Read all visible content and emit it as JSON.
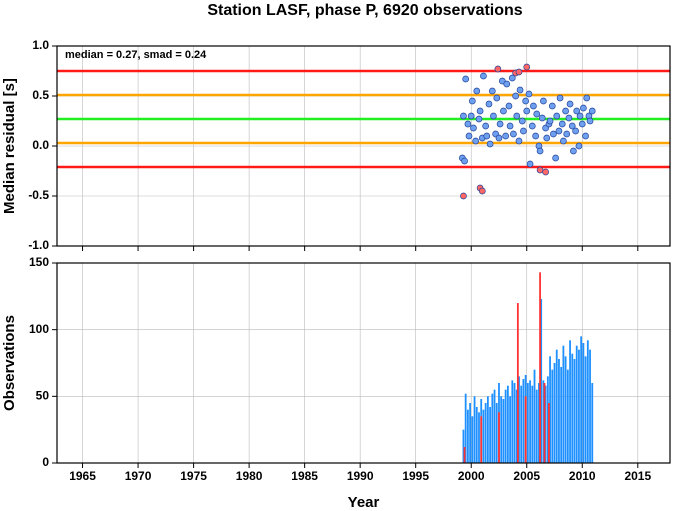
{
  "chart_data": [
    {
      "type": "scatter",
      "title": "Station LASF, phase P, 6920 observations",
      "ylabel": "Median residual [s]",
      "annotation": "median = 0.27, smad = 0.24",
      "xlim": [
        1962.7,
        2017.9
      ],
      "xticks": [
        1965,
        1970,
        1975,
        1980,
        1985,
        1990,
        1995,
        2000,
        2005,
        2010,
        2015
      ],
      "ylim": [
        -1.0,
        1.0
      ],
      "yticks": [
        {
          "value": -1.0,
          "label": "-1.0"
        },
        {
          "value": -0.5,
          "label": "-0.5"
        },
        {
          "value": 0.0,
          "label": "0.0"
        },
        {
          "value": 0.5,
          "label": "0.5"
        },
        {
          "value": 1.0,
          "label": "1.0"
        }
      ],
      "grid": true,
      "hlines": [
        {
          "value": 0.75,
          "color": "#ff1a1a"
        },
        {
          "value": 0.51,
          "color": "#ffa500"
        },
        {
          "value": 0.27,
          "color": "#22ee22"
        },
        {
          "value": 0.03,
          "color": "#ffa500"
        },
        {
          "value": -0.21,
          "color": "#ff1a1a"
        }
      ],
      "series": [
        {
          "color": "#6fa0f0",
          "x": [
            1999.2,
            1999.3,
            1999.4,
            1999.5,
            1999.7,
            1999.8,
            2000.0,
            2000.1,
            2000.2,
            2000.4,
            2000.5,
            2000.7,
            2000.8,
            2001.0,
            2001.1,
            2001.3,
            2001.4,
            2001.6,
            2001.7,
            2001.9,
            2002.0,
            2002.2,
            2002.3,
            2002.5,
            2002.6,
            2002.8,
            2002.9,
            2003.1,
            2003.2,
            2003.4,
            2003.5,
            2003.7,
            2003.8,
            2004.0,
            2004.1,
            2004.3,
            2004.4,
            2004.6,
            2004.7,
            2004.9,
            2005.0,
            2005.2,
            2005.3,
            2005.5,
            2005.6,
            2005.8,
            2005.9,
            2006.1,
            2006.2,
            2006.4,
            2006.5,
            2006.7,
            2006.8,
            2007.0,
            2007.1,
            2007.3,
            2007.4,
            2007.6,
            2007.7,
            2007.9,
            2008.0,
            2008.2,
            2008.3,
            2008.5,
            2008.6,
            2008.8,
            2008.9,
            2009.1,
            2009.2,
            2009.4,
            2009.5,
            2009.7,
            2009.8,
            2010.0,
            2010.1,
            2010.3,
            2010.4,
            2010.6,
            2010.7,
            2010.9
          ],
          "values": [
            -0.12,
            0.3,
            -0.15,
            0.67,
            0.22,
            0.1,
            0.3,
            0.45,
            0.18,
            0.05,
            0.55,
            0.27,
            0.35,
            0.08,
            0.7,
            0.2,
            0.1,
            0.42,
            0.02,
            0.55,
            0.3,
            0.12,
            0.48,
            0.08,
            0.22,
            0.65,
            0.35,
            0.1,
            0.62,
            0.4,
            0.2,
            0.68,
            0.12,
            0.5,
            0.3,
            0.05,
            0.56,
            0.25,
            0.15,
            0.45,
            0.35,
            0.52,
            -0.18,
            0.2,
            0.4,
            0.1,
            0.32,
            0.0,
            -0.05,
            0.28,
            0.45,
            0.18,
            0.08,
            0.22,
            0.25,
            0.4,
            0.12,
            -0.12,
            0.3,
            0.15,
            0.48,
            0.22,
            0.05,
            0.35,
            0.12,
            0.28,
            0.42,
            0.2,
            -0.05,
            0.15,
            0.35,
            0.0,
            0.3,
            0.22,
            0.38,
            0.1,
            0.48,
            0.3,
            0.25,
            0.35
          ]
        },
        {
          "color": "#ff6666",
          "x": [
            1999.3,
            2000.8,
            2001.0,
            2002.4,
            2004.0,
            2004.3,
            2005.0,
            2006.2,
            2006.7
          ],
          "values": [
            -0.5,
            -0.42,
            -0.45,
            0.77,
            0.73,
            0.74,
            0.79,
            -0.24,
            -0.26
          ]
        }
      ]
    },
    {
      "type": "bar",
      "xlabel": "Year",
      "ylabel": "Observations",
      "xlim": [
        1962.7,
        2017.9
      ],
      "xticks": [
        1965,
        1970,
        1975,
        1980,
        1985,
        1990,
        1995,
        2000,
        2005,
        2010,
        2015
      ],
      "ylim": [
        0,
        150
      ],
      "yticks": [
        0,
        50,
        100,
        150
      ],
      "grid": true,
      "series": [
        {
          "color": "#1e90ff",
          "x": [
            1999.3,
            1999.5,
            1999.7,
            1999.9,
            2000.1,
            2000.3,
            2000.5,
            2000.7,
            2000.9,
            2001.1,
            2001.3,
            2001.5,
            2001.7,
            2001.9,
            2002.1,
            2002.3,
            2002.5,
            2002.7,
            2002.9,
            2003.1,
            2003.3,
            2003.5,
            2003.7,
            2003.9,
            2004.1,
            2004.3,
            2004.5,
            2004.7,
            2004.9,
            2005.1,
            2005.3,
            2005.5,
            2005.7,
            2005.9,
            2006.1,
            2006.3,
            2006.5,
            2006.7,
            2006.9,
            2007.1,
            2007.3,
            2007.5,
            2007.7,
            2007.9,
            2008.1,
            2008.3,
            2008.5,
            2008.7,
            2008.9,
            2009.1,
            2009.3,
            2009.5,
            2009.7,
            2009.9,
            2010.1,
            2010.3,
            2010.5,
            2010.7,
            2010.9
          ],
          "values": [
            25,
            52,
            40,
            45,
            35,
            50,
            42,
            38,
            48,
            40,
            45,
            50,
            42,
            52,
            55,
            45,
            60,
            50,
            48,
            55,
            58,
            50,
            62,
            60,
            55,
            65,
            58,
            63,
            66,
            60,
            62,
            58,
            70,
            55,
            60,
            123,
            62,
            58,
            65,
            80,
            70,
            75,
            85,
            78,
            72,
            88,
            80,
            70,
            92,
            82,
            78,
            88,
            85,
            95,
            90,
            80,
            92,
            85,
            60
          ]
        },
        {
          "color": "#ff3333",
          "x": [
            1999.4,
            2000.9,
            2002.5,
            2004.2,
            2004.9,
            2006.2,
            2006.6,
            2007.0
          ],
          "values": [
            12,
            35,
            38,
            120,
            50,
            143,
            60,
            45
          ]
        }
      ]
    }
  ]
}
